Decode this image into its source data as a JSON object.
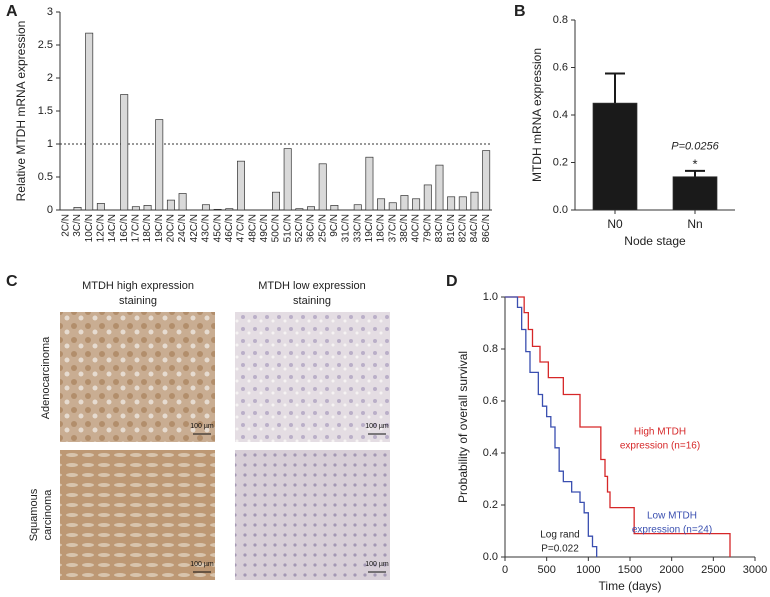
{
  "chart_data": [
    {
      "type": "bar",
      "label": "A",
      "y_label": "Relative MTDH mRNA expression",
      "categories": [
        "2C/N",
        "3C/N",
        "10C/N",
        "12C/N",
        "14C/N",
        "16C/N",
        "17C/N",
        "18C/N",
        "19C/N",
        "20C/N",
        "24C/N",
        "42C/N",
        "43C/N",
        "45C/N",
        "46C/N",
        "47C/N",
        "48C/N",
        "49C/N",
        "50C/N",
        "51C/N",
        "52C/N",
        "36C/N",
        "25C/N",
        "9C/N",
        "31C/N",
        "33C/N",
        "19C/N",
        "18C/N",
        "37C/N",
        "38C/N",
        "40C/N",
        "79C/N",
        "83C/N",
        "81C/N",
        "82C/N",
        "84C/N",
        "86C/N"
      ],
      "values": [
        0.0,
        0.04,
        2.68,
        0.1,
        0.0,
        1.75,
        0.05,
        0.07,
        1.37,
        0.15,
        0.25,
        0.0,
        0.08,
        0.01,
        0.02,
        0.74,
        0.0,
        0.0,
        0.27,
        0.93,
        0.02,
        0.05,
        0.7,
        0.07,
        0.0,
        0.08,
        0.8,
        0.17,
        0.11,
        0.22,
        0.17,
        0.38,
        0.68,
        0.2,
        0.2,
        0.27,
        0.9
      ],
      "color": "#d9d9d9",
      "reference_line": 1,
      "ylim": [
        0,
        3
      ],
      "yticks": [
        0,
        0.5,
        1,
        1.5,
        2,
        2.5,
        3
      ]
    },
    {
      "type": "bar",
      "label": "B",
      "x_label": "Node stage",
      "y_label": "MTDH mRNA expression",
      "categories": [
        "N0",
        "Nn"
      ],
      "values": [
        0.45,
        0.14
      ],
      "errors": [
        0.125,
        0.025
      ],
      "color": "#1a1a1a",
      "annotations": [
        "P=0.0256",
        "*"
      ],
      "ylim": [
        0,
        0.8
      ],
      "yticks": [
        {
          "value": 0,
          "label": "0.0"
        },
        0.2,
        0.4,
        0.6,
        0.8
      ]
    },
    {
      "type": "line",
      "label": "D",
      "x_label": "Time (days)",
      "y_label": "Probability of overall survival",
      "series": [
        {
          "name": [
            "High MTDH",
            "expression (n=16)"
          ],
          "color": "#d62728",
          "x": [
            0,
            230,
            280,
            330,
            420,
            520,
            700,
            900,
            1150,
            1200,
            1230,
            1260,
            1550,
            2700
          ],
          "values": [
            1.0,
            0.94,
            0.875,
            0.81,
            0.75,
            0.69,
            0.625,
            0.5,
            0.375,
            0.31,
            0.25,
            0.19,
            0.09,
            0.0
          ]
        },
        {
          "name": [
            "Low MTDH",
            "expression (n=24)"
          ],
          "color": "#3a4fb0",
          "x": [
            0,
            150,
            200,
            250,
            300,
            400,
            450,
            500,
            550,
            600,
            650,
            700,
            800,
            900,
            950,
            1000,
            1050,
            1100
          ],
          "values": [
            1.0,
            0.96,
            0.875,
            0.79,
            0.71,
            0.625,
            0.58,
            0.54,
            0.5,
            0.42,
            0.33,
            0.29,
            0.25,
            0.21,
            0.17,
            0.08,
            0.04,
            0.0
          ]
        }
      ],
      "annotations": [
        "Log rand",
        "P=0.022"
      ],
      "xlim": [
        0,
        3000
      ],
      "xticks": [
        0,
        500,
        1000,
        1500,
        2000,
        2500,
        3000
      ],
      "ylim": [
        0,
        1
      ],
      "yticks": [
        {
          "value": 0,
          "label": "0.0"
        },
        0.2,
        0.4,
        0.6,
        0.8,
        {
          "value": 1,
          "label": "1.0"
        }
      ]
    }
  ],
  "panel_c": {
    "label": "C",
    "columns": [
      [
        "MTDH high expression",
        "staining"
      ],
      [
        "MTDH low expression",
        "staining"
      ]
    ],
    "rows": [
      [
        "Adenocarcinoma"
      ],
      [
        "Squamous",
        "carcinoma"
      ]
    ],
    "scale_bars": [
      "100 µm",
      "100 µm",
      "100 µm",
      "100 µm"
    ]
  }
}
